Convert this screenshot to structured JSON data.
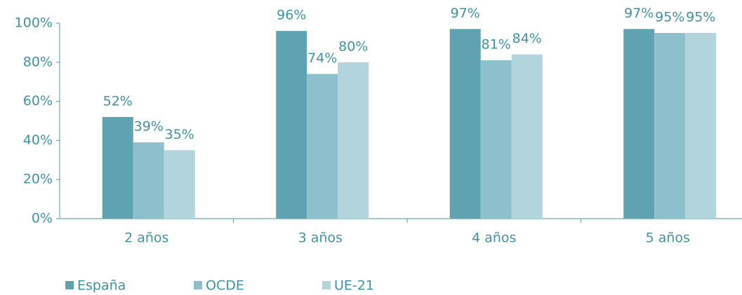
{
  "chart_data": {
    "type": "bar",
    "categories": [
      "2 años",
      "3 años",
      "4 años",
      "5 años"
    ],
    "series": [
      {
        "name": "España",
        "color": "#5fa3b3",
        "values": [
          52,
          96,
          97,
          97
        ],
        "value_labels": [
          "52%",
          "96%",
          "97%",
          "97%"
        ]
      },
      {
        "name": "OCDE",
        "color": "#8dbfcc",
        "values": [
          39,
          74,
          81,
          95
        ],
        "value_labels": [
          "39%",
          "74%",
          "81%",
          "95%"
        ]
      },
      {
        "name": "UE-21",
        "color": "#b2d4dc",
        "values": [
          35,
          80,
          84,
          95
        ],
        "value_labels": [
          "35%",
          "80%",
          "84%",
          "95%"
        ]
      }
    ],
    "ylim": [
      0,
      100
    ],
    "yticks": [
      {
        "value": 0,
        "label": "0%"
      },
      {
        "value": 20,
        "label": "20%"
      },
      {
        "value": 40,
        "label": "40%"
      },
      {
        "value": 60,
        "label": "60%"
      },
      {
        "value": 80,
        "label": "80%"
      },
      {
        "value": 100,
        "label": "100%"
      }
    ],
    "grid": false,
    "legend": "bottom-left"
  }
}
